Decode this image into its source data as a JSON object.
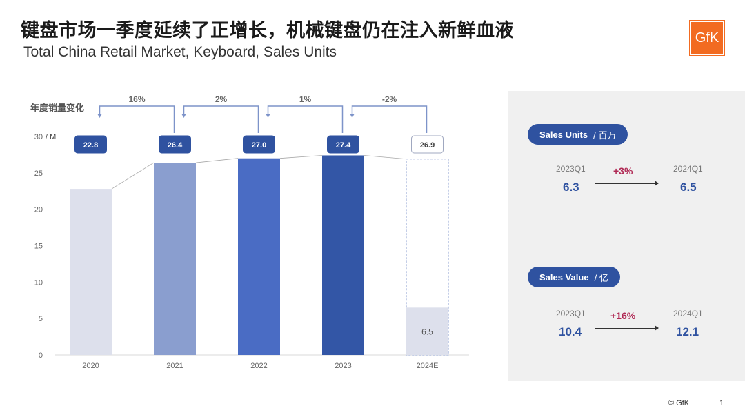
{
  "header": {
    "title": "键盘市场一季度延续了正增长，机械键盘仍在注入新鲜血液",
    "subtitle": "Total China Retail Market, Keyboard, Sales Units",
    "logo_text": "GfK"
  },
  "chart_data": {
    "type": "bar",
    "title": "年度销量变化",
    "unit_label": "/ M",
    "categories": [
      "2020",
      "2021",
      "2022",
      "2023",
      "2024E"
    ],
    "values": [
      22.8,
      26.4,
      27.0,
      27.4,
      26.9
    ],
    "value_labels": [
      "22.8",
      "26.4",
      "27.0",
      "27.4",
      "26.9"
    ],
    "estimated_category": "2024E",
    "q1_value": 6.5,
    "q1_label": "6.5",
    "growth_labels": [
      "16%",
      "2%",
      "1%",
      "-2%"
    ],
    "ylim": [
      0,
      30
    ],
    "yticks": [
      0,
      5,
      10,
      15,
      20,
      25,
      30
    ],
    "bar_colors": [
      "#dde0ec",
      "#8a9ecf",
      "#4a6cc4",
      "#3356a6",
      "#dde0ec"
    ],
    "grid": false
  },
  "panel": {
    "units": {
      "label": "Sales Units",
      "unit": "/ 百万",
      "from_period": "2023Q1",
      "to_period": "2024Q1",
      "from_value": "6.3",
      "to_value": "6.5",
      "change": "+3%"
    },
    "value": {
      "label": "Sales Value",
      "unit": "/ 亿",
      "from_period": "2023Q1",
      "to_period": "2024Q1",
      "from_value": "10.4",
      "to_value": "12.1",
      "change": "+16%"
    }
  },
  "footer": {
    "copyright": "© GfK",
    "page": "1"
  }
}
